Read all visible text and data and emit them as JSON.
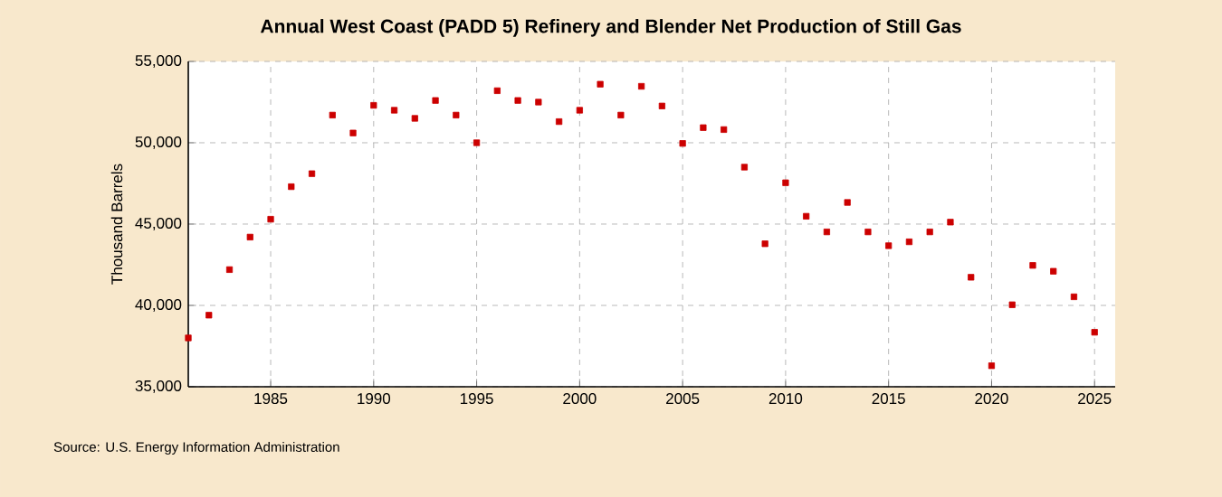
{
  "chart_data": {
    "type": "scatter",
    "title": "Annual West Coast (PADD 5) Refinery and Blender Net Production of Still Gas",
    "ylabel": "Thousand Barrels",
    "x": [
      1981,
      1982,
      1983,
      1984,
      1985,
      1986,
      1987,
      1988,
      1989,
      1990,
      1991,
      1992,
      1993,
      1994,
      1995,
      1996,
      1997,
      1998,
      1999,
      2000,
      2001,
      2002,
      2003,
      2004,
      2005,
      2006,
      2007,
      2008,
      2009,
      2010,
      2011,
      2012,
      2013,
      2014,
      2015,
      2016,
      2017,
      2018,
      2019,
      2020,
      2021,
      2022,
      2023,
      2024,
      2025
    ],
    "series": [
      {
        "color": "#cc0000",
        "values": [
          38000,
          39400,
          42200,
          44200,
          45300,
          47300,
          48100,
          51700,
          50600,
          52300,
          52000,
          51500,
          52600,
          51700,
          50000,
          53200,
          52600,
          52500,
          51300,
          52000,
          53600,
          51700,
          53470,
          52260,
          49960,
          50930,
          50810,
          48500,
          43790,
          47540,
          45480,
          44520,
          46330,
          44520,
          43670,
          43910,
          44520,
          45120,
          41730,
          36290,
          40040,
          42460,
          42100,
          40530,
          38350
        ]
      }
    ],
    "xlim": [
      1981,
      2026
    ],
    "ylim": [
      35000,
      55000
    ],
    "xticks": [
      1985,
      1990,
      1995,
      2000,
      2005,
      2010,
      2015,
      2020,
      2025
    ],
    "yticks": [
      {
        "value": 35000,
        "label": "35,000"
      },
      {
        "value": 40000,
        "label": "40,000"
      },
      {
        "value": 45000,
        "label": "45,000"
      },
      {
        "value": 50000,
        "label": "50,000"
      },
      {
        "value": 55000,
        "label": "55,000"
      }
    ],
    "grid": true,
    "marker": "square",
    "annotations": [
      "Source: U.S. Energy Information Administration"
    ]
  }
}
